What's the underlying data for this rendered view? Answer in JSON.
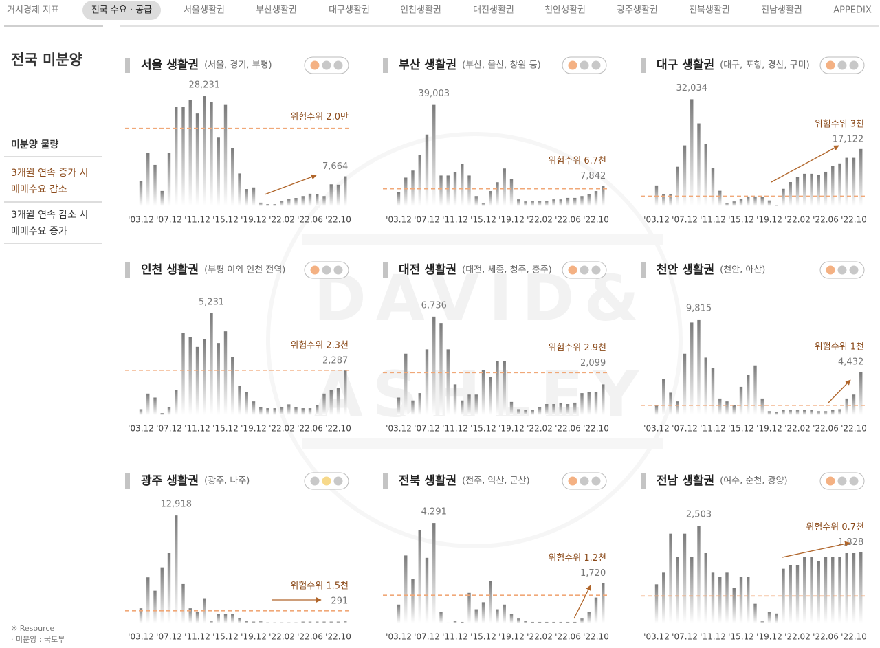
{
  "nav": {
    "items": [
      "거시경제 지표",
      "전국 수요 · 공급",
      "서울생활권",
      "부산생활권",
      "대구생활권",
      "인천생활권",
      "대전생활권",
      "천안생활권",
      "광주생활권",
      "전북생활권",
      "전남생활권",
      "APPEDIX"
    ],
    "active": 1
  },
  "sidebar": {
    "title": "전국 미분양",
    "items": [
      [
        "미분양 물량"
      ],
      [
        "3개월 연속 증가 시",
        "매매수요 감소"
      ],
      [
        "3개월 연속 감소 시",
        "매매수요 증가"
      ]
    ]
  },
  "footer": [
    "※ Resource",
    "· 미분양 : 국토부"
  ],
  "watermark": [
    "DAVID&",
    "ASHLEY"
  ],
  "chart_data": [
    {
      "type": "bar",
      "title": "서울 생활권",
      "subtitle": "(서울, 경기, 부평)",
      "categories": [
        "'03.12",
        null,
        null,
        null,
        "'07.12",
        null,
        null,
        null,
        "'11.12",
        null,
        null,
        null,
        "'15.12",
        null,
        null,
        null,
        "'19.12",
        null,
        null,
        null,
        "'22.02",
        null,
        null,
        null,
        "'22.06",
        null,
        null,
        null,
        "'22.10",
        null
      ],
      "values": [
        6500,
        13700,
        10600,
        3900,
        13700,
        25500,
        25500,
        27300,
        23800,
        28231,
        26800,
        17600,
        26000,
        15000,
        8400,
        4400,
        4800,
        900,
        500,
        500,
        1400,
        1900,
        2100,
        2600,
        3200,
        3000,
        2600,
        5600,
        5500,
        7664
      ],
      "value_labels": [
        null,
        null,
        null,
        null,
        null,
        null,
        null,
        null,
        null,
        "28,231",
        null,
        null,
        null,
        null,
        null,
        null,
        null,
        null,
        null,
        null,
        null,
        null,
        null,
        null,
        null,
        null,
        null,
        null,
        null,
        "7,664"
      ],
      "color": "#7a7a7a",
      "ylim": [
        0,
        30000
      ],
      "threshold": {
        "value": 20000,
        "label": "위험수위 2.0만"
      },
      "threshold_color": "#f0a878",
      "signal_colors": [
        "#f4b183",
        "#c8c8c8",
        "#c8c8c8"
      ]
    },
    {
      "type": "bar",
      "title": "부산 생활권",
      "subtitle": "(부산, 울산, 창원 등)",
      "categories": [
        "'03.12",
        null,
        null,
        null,
        "'07.12",
        null,
        null,
        null,
        "'11.12",
        null,
        null,
        null,
        "'15.12",
        null,
        null,
        null,
        "'19.12",
        null,
        null,
        null,
        "'22.02",
        null,
        null,
        null,
        "'22.06",
        null,
        null,
        null,
        "'22.10",
        null
      ],
      "values": [
        5300,
        11000,
        13700,
        19700,
        27600,
        39003,
        11800,
        11800,
        13200,
        16300,
        11800,
        3900,
        1300,
        5800,
        9200,
        14500,
        10500,
        2600,
        1800,
        2100,
        2100,
        2100,
        2600,
        2600,
        3200,
        3200,
        3900,
        4700,
        5800,
        7842
      ],
      "value_labels": [
        null,
        null,
        null,
        null,
        null,
        "39,003",
        null,
        null,
        null,
        null,
        null,
        null,
        null,
        null,
        null,
        null,
        null,
        null,
        null,
        null,
        null,
        null,
        null,
        null,
        null,
        null,
        null,
        null,
        null,
        "7,842"
      ],
      "color": "#7a7a7a",
      "ylim": [
        0,
        45000
      ],
      "threshold": {
        "value": 6700,
        "label": "위험수위 6.7천"
      },
      "threshold_color": "#f0a878",
      "signal_colors": [
        "#f4b183",
        "#c8c8c8",
        "#c8c8c8"
      ]
    },
    {
      "type": "bar",
      "title": "대구 생활권",
      "subtitle": "(대구, 포항, 경산, 구미)",
      "categories": [
        "'03.12",
        null,
        null,
        null,
        "'07.12",
        null,
        null,
        null,
        "'11.12",
        null,
        null,
        null,
        "'15.12",
        null,
        null,
        null,
        "'19.12",
        null,
        null,
        null,
        "'22.02",
        null,
        null,
        null,
        "'22.06",
        null,
        null,
        null,
        "'22.10",
        null
      ],
      "values": [
        6200,
        3700,
        3700,
        11800,
        18200,
        32034,
        24800,
        18600,
        11400,
        4600,
        1000,
        1400,
        2100,
        2900,
        2900,
        2700,
        1700,
        400,
        5200,
        7200,
        8700,
        9700,
        9700,
        9300,
        10300,
        12000,
        12800,
        14500,
        14500,
        17122
      ],
      "value_labels": [
        null,
        null,
        null,
        null,
        null,
        "32,034",
        null,
        null,
        null,
        null,
        null,
        null,
        null,
        null,
        null,
        null,
        null,
        null,
        null,
        null,
        null,
        null,
        null,
        null,
        null,
        null,
        null,
        null,
        null,
        "17,122"
      ],
      "color": "#7a7a7a",
      "ylim": [
        0,
        35000
      ],
      "threshold": {
        "value": 3000,
        "label": "위험수위 3천"
      },
      "threshold_color": "#f0a878",
      "signal_colors": [
        "#f4b183",
        "#c8c8c8",
        "#c8c8c8"
      ]
    },
    {
      "type": "bar",
      "title": "인천 생활권",
      "subtitle": "(부평 이외 인천 전역)",
      "categories": [
        "'03.12",
        null,
        null,
        null,
        "'07.12",
        null,
        null,
        null,
        "'11.12",
        null,
        null,
        null,
        "'15.12",
        null,
        null,
        null,
        "'19.12",
        null,
        null,
        null,
        "'22.02",
        null,
        null,
        null,
        "'22.06",
        null,
        null,
        null,
        "'22.10",
        null
      ],
      "values": [
        300,
        1100,
        900,
        100,
        400,
        1300,
        4200,
        4000,
        3500,
        3900,
        5231,
        3700,
        4300,
        3000,
        1500,
        1200,
        700,
        400,
        350,
        350,
        400,
        550,
        400,
        350,
        350,
        500,
        1100,
        1300,
        1400,
        2287
      ],
      "value_labels": [
        null,
        null,
        null,
        null,
        null,
        null,
        null,
        null,
        null,
        null,
        "5,231",
        null,
        null,
        null,
        null,
        null,
        null,
        null,
        null,
        null,
        null,
        null,
        null,
        null,
        null,
        null,
        null,
        null,
        null,
        "2,287"
      ],
      "color": "#7a7a7a",
      "ylim": [
        0,
        6000
      ],
      "threshold": {
        "value": 2300,
        "label": "위험수위 2.3천"
      },
      "threshold_color": "#f0a878",
      "signal_colors": [
        "#f4b183",
        "#c8c8c8",
        "#c8c8c8"
      ]
    },
    {
      "type": "bar",
      "title": "대전 생활권",
      "subtitle": "(대전, 세종, 청주, 충주)",
      "categories": [
        "'03.12",
        null,
        null,
        null,
        "'07.12",
        null,
        null,
        null,
        "'11.12",
        null,
        null,
        null,
        "'15.12",
        null,
        null,
        null,
        "'19.12",
        null,
        null,
        null,
        "'22.02",
        null,
        null,
        null,
        "'22.06",
        null,
        null,
        null,
        "'22.10",
        null
      ],
      "values": [
        1200,
        4200,
        1000,
        1500,
        4500,
        6736,
        6300,
        4500,
        2100,
        1000,
        1400,
        1400,
        3100,
        2600,
        3700,
        3700,
        900,
        400,
        350,
        350,
        550,
        750,
        750,
        800,
        750,
        850,
        1500,
        1600,
        1600,
        2099
      ],
      "value_labels": [
        null,
        null,
        null,
        null,
        null,
        "6,736",
        null,
        null,
        null,
        null,
        null,
        null,
        null,
        null,
        null,
        null,
        null,
        null,
        null,
        null,
        null,
        null,
        null,
        null,
        null,
        null,
        null,
        null,
        null,
        "2,099"
      ],
      "color": "#7a7a7a",
      "ylim": [
        0,
        8000
      ],
      "threshold": {
        "value": 2900,
        "label": "위험수위 2.9천"
      },
      "threshold_color": "#f0a878",
      "signal_colors": [
        "#f4b183",
        "#c8c8c8",
        "#c8c8c8"
      ]
    },
    {
      "type": "bar",
      "title": "천안 생활권",
      "subtitle": "(천안, 아산)",
      "categories": [
        "'03.12",
        null,
        null,
        null,
        "'07.12",
        null,
        null,
        null,
        "'11.12",
        null,
        null,
        null,
        "'15.12",
        null,
        null,
        null,
        "'19.12",
        null,
        null,
        null,
        "'22.02",
        null,
        null,
        null,
        "'22.06",
        null,
        null,
        null,
        "'22.10",
        null
      ],
      "values": [
        1000,
        3700,
        2300,
        1400,
        6300,
        9500,
        9815,
        5900,
        4800,
        1700,
        1400,
        1000,
        2900,
        4100,
        5100,
        1700,
        400,
        300,
        500,
        550,
        550,
        500,
        500,
        400,
        400,
        500,
        600,
        1700,
        2100,
        4432
      ],
      "value_labels": [
        null,
        null,
        null,
        null,
        null,
        null,
        "9,815",
        null,
        null,
        null,
        null,
        null,
        null,
        null,
        null,
        null,
        null,
        null,
        null,
        null,
        null,
        null,
        null,
        null,
        null,
        null,
        null,
        null,
        null,
        "4,432"
      ],
      "color": "#7a7a7a",
      "ylim": [
        0,
        12000
      ],
      "threshold": {
        "value": 1000,
        "label": "위험수위 1천"
      },
      "threshold_color": "#f0a878",
      "signal_colors": [
        "#f4b183",
        "#c8c8c8",
        "#c8c8c8"
      ]
    },
    {
      "type": "bar",
      "title": "광주 생활권",
      "subtitle": "(광주, 나주)",
      "categories": [
        "'03.12",
        null,
        null,
        null,
        "'07.12",
        null,
        null,
        null,
        "'11.12",
        null,
        null,
        null,
        "'15.12",
        null,
        null,
        null,
        "'19.12",
        null,
        null,
        null,
        "'22.02",
        null,
        null,
        null,
        "'22.06",
        null,
        null,
        null,
        "'22.10",
        null
      ],
      "values": [
        1800,
        5500,
        3900,
        6700,
        8400,
        12918,
        4700,
        1800,
        1400,
        3000,
        300,
        1100,
        1100,
        1100,
        600,
        250,
        200,
        300,
        100,
        100,
        100,
        100,
        100,
        200,
        200,
        200,
        200,
        200,
        200,
        291
      ],
      "value_labels": [
        null,
        null,
        null,
        null,
        null,
        "12,918",
        null,
        null,
        null,
        null,
        null,
        null,
        null,
        null,
        null,
        null,
        null,
        null,
        null,
        null,
        null,
        null,
        null,
        null,
        null,
        null,
        null,
        null,
        null,
        "291"
      ],
      "color": "#7a7a7a",
      "ylim": [
        0,
        14000
      ],
      "threshold": {
        "value": 1500,
        "label": "위험수위 1.5천"
      },
      "threshold_color": "#f0a878",
      "signal_colors": [
        "#c8c8c8",
        "#f7d98b",
        "#c8c8c8"
      ]
    },
    {
      "type": "bar",
      "title": "전북 생활권",
      "subtitle": "(전주, 익산, 군산)",
      "categories": [
        "'03.12",
        null,
        null,
        null,
        "'07.12",
        null,
        null,
        null,
        "'11.12",
        null,
        null,
        null,
        "'15.12",
        null,
        null,
        null,
        "'19.12",
        null,
        null,
        null,
        "'22.02",
        null,
        null,
        null,
        "'22.06",
        null,
        null,
        null,
        "'22.10",
        null
      ],
      "values": [
        800,
        2900,
        1900,
        4000,
        2800,
        4291,
        500,
        30,
        90,
        60,
        1300,
        600,
        900,
        1800,
        600,
        800,
        400,
        200,
        90,
        60,
        60,
        60,
        60,
        60,
        60,
        60,
        200,
        500,
        1100,
        1720
      ],
      "value_labels": [
        null,
        null,
        null,
        null,
        null,
        "4,291",
        null,
        null,
        null,
        null,
        null,
        null,
        null,
        null,
        null,
        null,
        null,
        null,
        null,
        null,
        null,
        null,
        null,
        null,
        null,
        null,
        null,
        null,
        null,
        "1,720"
      ],
      "color": "#7a7a7a",
      "ylim": [
        0,
        5000
      ],
      "threshold": {
        "value": 1200,
        "label": "위험수위 1.2천"
      },
      "threshold_color": "#f0a878",
      "signal_colors": [
        "#f4b183",
        "#c8c8c8",
        "#c8c8c8"
      ]
    },
    {
      "type": "bar",
      "title": "전남 생활권",
      "subtitle": "(여수, 순천, 광양)",
      "categories": [
        "'03.12",
        null,
        null,
        null,
        "'07.12",
        null,
        null,
        null,
        "'11.12",
        null,
        null,
        null,
        "'15.12",
        null,
        null,
        null,
        "'19.12",
        null,
        null,
        null,
        "'22.02",
        null,
        null,
        null,
        "'22.06",
        null,
        null,
        null,
        "'22.10",
        null
      ],
      "values": [
        1000,
        1300,
        2300,
        1700,
        2300,
        1700,
        2503,
        1800,
        1300,
        1200,
        1300,
        900,
        1200,
        1200,
        500,
        70,
        300,
        250,
        1400,
        1500,
        1500,
        1700,
        1700,
        1600,
        1700,
        1700,
        1700,
        1800,
        1800,
        1828
      ],
      "value_labels": [
        null,
        null,
        null,
        null,
        null,
        null,
        "2,503",
        null,
        null,
        null,
        null,
        null,
        null,
        null,
        null,
        null,
        null,
        null,
        null,
        null,
        null,
        null,
        null,
        null,
        null,
        null,
        null,
        null,
        null,
        "1,828"
      ],
      "color": "#7a7a7a",
      "ylim": [
        0,
        3000
      ],
      "threshold": {
        "value": 700,
        "label": "위험수위 0.7천"
      },
      "threshold_color": "#f0a878",
      "signal_colors": [
        "#f4b183",
        "#c8c8c8",
        "#c8c8c8"
      ]
    }
  ]
}
